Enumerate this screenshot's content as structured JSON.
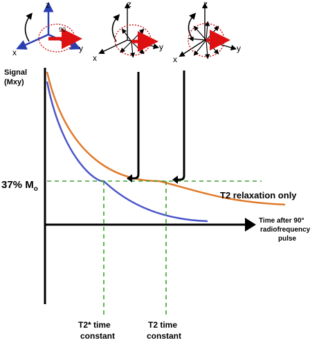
{
  "colors": {
    "t2_curve": "#e07a2a",
    "t2_star_curve": "#4a55c8",
    "guide_lines": "#3aa02a",
    "spin_ring": "#cc1f1f",
    "net_vector": "#dd1111",
    "axis": "#000000"
  },
  "spin_diagrams": [
    {
      "z": "z",
      "x": "x",
      "y": "y",
      "angle": "90"
    },
    {
      "z": "z",
      "x": "x",
      "y": "y"
    },
    {
      "z": "z",
      "x": "x",
      "y": "y"
    }
  ],
  "axes": {
    "ylabel_line1": "Signal",
    "ylabel_line2": "(Mxy)",
    "xlabel_line1": "Time after 90°",
    "xlabel_line2": "radiofrequency",
    "xlabel_line3": "pulse"
  },
  "threshold": {
    "label_main": "37% M",
    "label_sub": "o"
  },
  "legend": {
    "t2_label": "T2 relaxation only"
  },
  "markers": {
    "t2star_line1": "T2* time",
    "t2star_line2": "constant",
    "t2_line1": "T2 time",
    "t2_line2": "constant"
  }
}
